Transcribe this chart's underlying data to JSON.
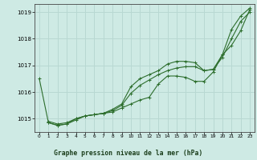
{
  "title": "Graphe pression niveau de la mer (hPa)",
  "background_color": "#ceeae4",
  "grid_color": "#b8d8d2",
  "line_color": "#2d6e2d",
  "xlim": [
    -0.5,
    23.5
  ],
  "ylim": [
    1014.5,
    1019.3
  ],
  "yticks": [
    1015,
    1016,
    1017,
    1018,
    1019
  ],
  "xticks": [
    0,
    1,
    2,
    3,
    4,
    5,
    6,
    7,
    8,
    9,
    10,
    11,
    12,
    13,
    14,
    15,
    16,
    17,
    18,
    19,
    20,
    21,
    22,
    23
  ],
  "series": [
    {
      "x": [
        0,
        1,
        2,
        3,
        4,
        5,
        6,
        7,
        8,
        9,
        10,
        11,
        12,
        13,
        14,
        15,
        16,
        17,
        18,
        19,
        20,
        21,
        22,
        23
      ],
      "y": [
        1016.5,
        1014.85,
        1014.75,
        1014.8,
        1015.0,
        1015.1,
        1015.15,
        1015.2,
        1015.25,
        1015.4,
        1015.55,
        1015.7,
        1015.8,
        1016.3,
        1016.6,
        1016.6,
        1016.55,
        1016.4,
        1016.4,
        1016.75,
        1017.4,
        1017.75,
        1018.3,
        1019.1
      ]
    },
    {
      "x": [
        1,
        2,
        3,
        4,
        5,
        6,
        7,
        8,
        9,
        10,
        11,
        12,
        13,
        14,
        15,
        16,
        17,
        18,
        19,
        20,
        21,
        22,
        23
      ],
      "y": [
        1014.85,
        1014.75,
        1014.8,
        1014.95,
        1015.1,
        1015.15,
        1015.2,
        1015.35,
        1015.55,
        1016.2,
        1016.5,
        1016.65,
        1016.8,
        1017.05,
        1017.15,
        1017.15,
        1017.1,
        1016.8,
        1016.85,
        1017.3,
        1018.0,
        1018.65,
        1019.0
      ]
    },
    {
      "x": [
        1,
        2,
        3,
        4,
        5,
        6,
        7,
        8,
        9,
        10,
        11,
        12,
        13,
        14,
        15,
        16,
        17,
        18,
        19,
        20,
        21,
        22,
        23
      ],
      "y": [
        1014.9,
        1014.8,
        1014.85,
        1015.0,
        1015.1,
        1015.15,
        1015.2,
        1015.3,
        1015.5,
        1015.95,
        1016.25,
        1016.45,
        1016.65,
        1016.8,
        1016.9,
        1016.95,
        1016.95,
        1016.8,
        1016.85,
        1017.4,
        1018.35,
        1018.85,
        1019.15
      ]
    }
  ]
}
